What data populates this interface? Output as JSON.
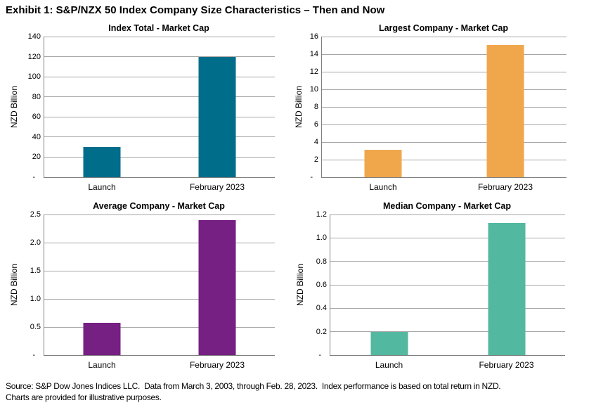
{
  "header": {
    "title": "Exhibit 1: S&P/NZX 50 Index Company Size Characteristics – Then and Now"
  },
  "chart_data": [
    {
      "type": "bar",
      "title": "Index Total - Market Cap",
      "ylabel": "NZD Billion",
      "categories": [
        "Launch",
        "February 2023"
      ],
      "values": [
        30,
        120
      ],
      "ylim": [
        0,
        140
      ],
      "ticks": [
        0,
        20,
        40,
        60,
        80,
        100,
        120,
        140
      ],
      "tick_labels": [
        "-",
        "20",
        "40",
        "60",
        "80",
        "100",
        "120",
        "140"
      ],
      "color": "#006d8a",
      "grid": true,
      "legend": "none"
    },
    {
      "type": "bar",
      "title": "Largest Company - Market Cap",
      "ylabel": "NZD Billion",
      "categories": [
        "Launch",
        "February 2023"
      ],
      "values": [
        3.1,
        15.0
      ],
      "ylim": [
        0,
        16
      ],
      "ticks": [
        0,
        2,
        4,
        6,
        8,
        10,
        12,
        14,
        16
      ],
      "tick_labels": [
        "-",
        "2",
        "4",
        "6",
        "8",
        "10",
        "12",
        "14",
        "16"
      ],
      "color": "#f0a74c",
      "grid": true,
      "legend": "none"
    },
    {
      "type": "bar",
      "title": "Average Company - Market Cap",
      "ylabel": "NZD Billion",
      "categories": [
        "Launch",
        "February 2023"
      ],
      "values": [
        0.58,
        2.4
      ],
      "ylim": [
        0,
        2.5
      ],
      "ticks": [
        0,
        0.5,
        1.0,
        1.5,
        2.0,
        2.5
      ],
      "tick_labels": [
        "-",
        "0.5",
        "1.0",
        "1.5",
        "2.0",
        "2.5"
      ],
      "color": "#752082",
      "grid": true,
      "legend": "none"
    },
    {
      "type": "bar",
      "title": "Median Company - Market Cap",
      "ylabel": "NZD Billion",
      "categories": [
        "Launch",
        "February 2023"
      ],
      "values": [
        0.2,
        1.13
      ],
      "ylim": [
        0,
        1.2
      ],
      "ticks": [
        0,
        0.2,
        0.4,
        0.6,
        0.8,
        1.0,
        1.2
      ],
      "tick_labels": [
        "-",
        "0.2",
        "0.4",
        "0.6",
        "0.8",
        "1.0",
        "1.2"
      ],
      "color": "#52b8a0",
      "grid": true,
      "legend": "none"
    }
  ],
  "footer": {
    "line1": "Source: S&P Dow Jones Indices LLC.  Data from March 3, 2003, through Feb. 28, 2023.  Index performance is based on total return in NZD.",
    "line2": "Charts are provided for illustrative purposes."
  }
}
